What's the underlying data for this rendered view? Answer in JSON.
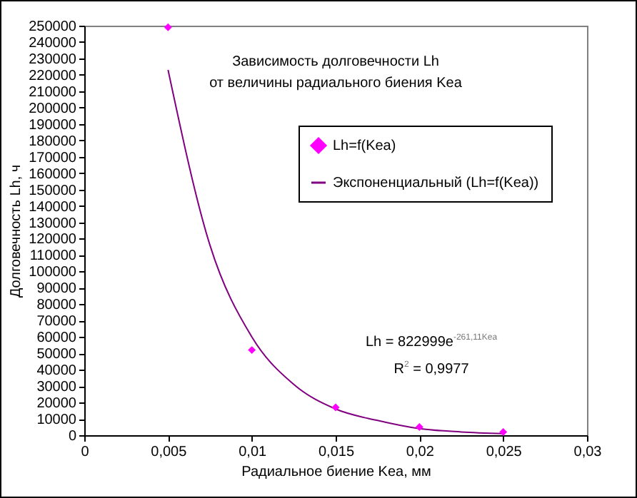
{
  "chart_data": {
    "type": "scatter",
    "title": [
      "Зависимость долговечности Lh",
      "от величины радиального биения Kea"
    ],
    "xlabel": "Радиальное биение Kea, мм",
    "ylabel": "Долговечность Lh, ч",
    "x": [
      0.005,
      0.01,
      0.015,
      0.02,
      0.025
    ],
    "series": [
      {
        "name": "Lh=f(Kea)",
        "color": "#ff00ff",
        "values": [
          249000,
          52000,
          17000,
          5000,
          2000
        ]
      },
      {
        "name": "Экспоненциальный (Lh=f(Kea))",
        "type": "line",
        "marker": "none",
        "color": "#800080",
        "x": [
          0.005,
          0.0075,
          0.01,
          0.0125,
          0.015,
          0.0175,
          0.02,
          0.0225,
          0.025
        ],
        "values": [
          223000,
          116000,
          60000,
          31000,
          16000,
          9000,
          4000,
          2000,
          1000
        ]
      }
    ],
    "annotations": [
      "Lh = 822999e$^{-261,11Kea}$",
      "R$^{2}$ = 0,9977"
    ],
    "xlim": [
      0,
      0.03
    ],
    "xticks": [
      0,
      {
        "value": 0.005,
        "label": "0,005"
      },
      {
        "value": 0.01,
        "label": "0,01"
      },
      {
        "value": 0.015,
        "label": "0,015"
      },
      {
        "value": 0.02,
        "label": "0,02"
      },
      {
        "value": 0.025,
        "label": "0,025"
      },
      {
        "value": 0.03,
        "label": "0,03"
      }
    ],
    "ylim": [
      0,
      250000
    ],
    "yticks": [
      0,
      10000,
      20000,
      30000,
      40000,
      50000,
      60000,
      70000,
      80000,
      90000,
      100000,
      110000,
      120000,
      130000,
      140000,
      150000,
      160000,
      170000,
      180000,
      190000,
      200000,
      210000,
      220000,
      230000,
      240000,
      250000
    ],
    "grid": false,
    "legend": "top right",
    "marker": "diamond",
    "line_style": "solid"
  }
}
